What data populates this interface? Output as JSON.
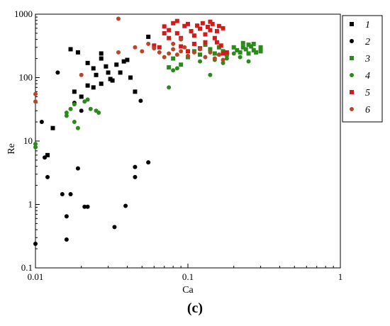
{
  "chart_data": {
    "type": "scatter",
    "xscale": "log",
    "yscale": "log",
    "xlim": [
      0.01,
      1
    ],
    "ylim": [
      0.1,
      1000
    ],
    "xlabel": "Ca",
    "ylabel": "Re",
    "xticks": [
      0.01,
      0.1,
      1
    ],
    "xtick_labels": [
      "0.01",
      "0.1",
      "1"
    ],
    "yticks": [
      0.1,
      1,
      10,
      100,
      1000
    ],
    "ytick_labels": [
      "0.1",
      "1",
      "10",
      "100",
      "1000"
    ],
    "legend_position": "right",
    "panel_label": "(c)",
    "series": [
      {
        "name": "1",
        "marker": "square",
        "color": "#000000",
        "points": [
          [
            0.017,
            280
          ],
          [
            0.019,
            250
          ],
          [
            0.022,
            170
          ],
          [
            0.024,
            140
          ],
          [
            0.025,
            110
          ],
          [
            0.027,
            240
          ],
          [
            0.027,
            200
          ],
          [
            0.029,
            150
          ],
          [
            0.03,
            120
          ],
          [
            0.032,
            90
          ],
          [
            0.034,
            160
          ],
          [
            0.036,
            120
          ],
          [
            0.038,
            180
          ],
          [
            0.04,
            190
          ],
          [
            0.042,
            100
          ],
          [
            0.045,
            60
          ],
          [
            0.018,
            60
          ],
          [
            0.02,
            50
          ],
          [
            0.022,
            75
          ],
          [
            0.024,
            70
          ],
          [
            0.027,
            80
          ],
          [
            0.031,
            95
          ],
          [
            0.013,
            16
          ],
          [
            0.012,
            6
          ],
          [
            0.055,
            440
          ]
        ]
      },
      {
        "name": "2",
        "marker": "circle",
        "color": "#000000",
        "points": [
          [
            0.01,
            0.24
          ],
          [
            0.011,
            20
          ],
          [
            0.0115,
            5.5
          ],
          [
            0.012,
            2.7
          ],
          [
            0.014,
            120
          ],
          [
            0.015,
            1.45
          ],
          [
            0.016,
            0.65
          ],
          [
            0.016,
            0.28
          ],
          [
            0.017,
            1.45
          ],
          [
            0.018,
            40
          ],
          [
            0.019,
            3.7
          ],
          [
            0.02,
            30
          ],
          [
            0.021,
            0.92
          ],
          [
            0.022,
            0.92
          ],
          [
            0.033,
            0.44
          ],
          [
            0.039,
            0.95
          ],
          [
            0.045,
            3.9
          ],
          [
            0.045,
            2.7
          ],
          [
            0.049,
            43
          ],
          [
            0.055,
            4.6
          ]
        ]
      },
      {
        "name": "3",
        "marker": "square",
        "color": "#2a8a1a",
        "points": [
          [
            0.075,
            145
          ],
          [
            0.08,
            200
          ],
          [
            0.09,
            160
          ],
          [
            0.1,
            210
          ],
          [
            0.11,
            260
          ],
          [
            0.12,
            230
          ],
          [
            0.13,
            330
          ],
          [
            0.14,
            280
          ],
          [
            0.15,
            240
          ],
          [
            0.16,
            300
          ],
          [
            0.17,
            260
          ],
          [
            0.18,
            230
          ],
          [
            0.2,
            300
          ],
          [
            0.21,
            270
          ],
          [
            0.22,
            250
          ],
          [
            0.23,
            300
          ],
          [
            0.24,
            280
          ],
          [
            0.25,
            240
          ],
          [
            0.26,
            310
          ],
          [
            0.27,
            270
          ],
          [
            0.28,
            250
          ],
          [
            0.3,
            300
          ],
          [
            0.3,
            260
          ],
          [
            0.27,
            340
          ],
          [
            0.25,
            330
          ],
          [
            0.23,
            350
          ]
        ]
      },
      {
        "name": "4",
        "marker": "circle",
        "color": "#2a8a1a",
        "points": [
          [
            0.01,
            8
          ],
          [
            0.01,
            9
          ],
          [
            0.016,
            25
          ],
          [
            0.016,
            28
          ],
          [
            0.017,
            32
          ],
          [
            0.018,
            38
          ],
          [
            0.018,
            20
          ],
          [
            0.019,
            16
          ],
          [
            0.021,
            42
          ],
          [
            0.022,
            45
          ],
          [
            0.023,
            32
          ],
          [
            0.025,
            30
          ],
          [
            0.026,
            28
          ],
          [
            0.075,
            70
          ],
          [
            0.08,
            130
          ],
          [
            0.085,
            140
          ],
          [
            0.15,
            190
          ],
          [
            0.16,
            230
          ],
          [
            0.17,
            170
          ],
          [
            0.18,
            200
          ],
          [
            0.2,
            240
          ],
          [
            0.22,
            210
          ],
          [
            0.25,
            180
          ],
          [
            0.14,
            110
          ],
          [
            0.12,
            180
          ]
        ]
      },
      {
        "name": "5",
        "marker": "square",
        "color": "#d21a1a",
        "points": [
          [
            0.06,
            320
          ],
          [
            0.065,
            300
          ],
          [
            0.07,
            640
          ],
          [
            0.075,
            560
          ],
          [
            0.08,
            720
          ],
          [
            0.085,
            500
          ],
          [
            0.09,
            420
          ],
          [
            0.095,
            650
          ],
          [
            0.1,
            700
          ],
          [
            0.105,
            540
          ],
          [
            0.11,
            460
          ],
          [
            0.115,
            660
          ],
          [
            0.12,
            590
          ],
          [
            0.125,
            720
          ],
          [
            0.13,
            480
          ],
          [
            0.135,
            630
          ],
          [
            0.14,
            560
          ],
          [
            0.145,
            700
          ],
          [
            0.15,
            420
          ],
          [
            0.155,
            540
          ],
          [
            0.16,
            650
          ],
          [
            0.165,
            320
          ],
          [
            0.17,
            240
          ],
          [
            0.17,
            600
          ],
          [
            0.18,
            250
          ],
          [
            0.09,
            310
          ],
          [
            0.1,
            260
          ],
          [
            0.11,
            340
          ],
          [
            0.12,
            290
          ],
          [
            0.13,
            360
          ],
          [
            0.085,
            780
          ],
          [
            0.14,
            760
          ],
          [
            0.07,
            500
          ],
          [
            0.075,
            420
          ],
          [
            0.155,
            360
          ]
        ]
      },
      {
        "name": "6",
        "marker": "circle",
        "color": "#b8472a",
        "points": [
          [
            0.01,
            42
          ],
          [
            0.01,
            55
          ],
          [
            0.02,
            110
          ],
          [
            0.035,
            850
          ],
          [
            0.035,
            250
          ],
          [
            0.045,
            300
          ],
          [
            0.05,
            260
          ],
          [
            0.055,
            340
          ],
          [
            0.06,
            290
          ],
          [
            0.065,
            250
          ],
          [
            0.07,
            210
          ],
          [
            0.075,
            240
          ],
          [
            0.08,
            280
          ],
          [
            0.085,
            230
          ],
          [
            0.09,
            260
          ],
          [
            0.095,
            300
          ],
          [
            0.1,
            220
          ],
          [
            0.11,
            250
          ],
          [
            0.12,
            280
          ],
          [
            0.13,
            210
          ],
          [
            0.14,
            250
          ],
          [
            0.15,
            200
          ],
          [
            0.16,
            230
          ],
          [
            0.17,
            190
          ],
          [
            0.09,
            400
          ],
          [
            0.08,
            340
          ]
        ]
      }
    ]
  }
}
